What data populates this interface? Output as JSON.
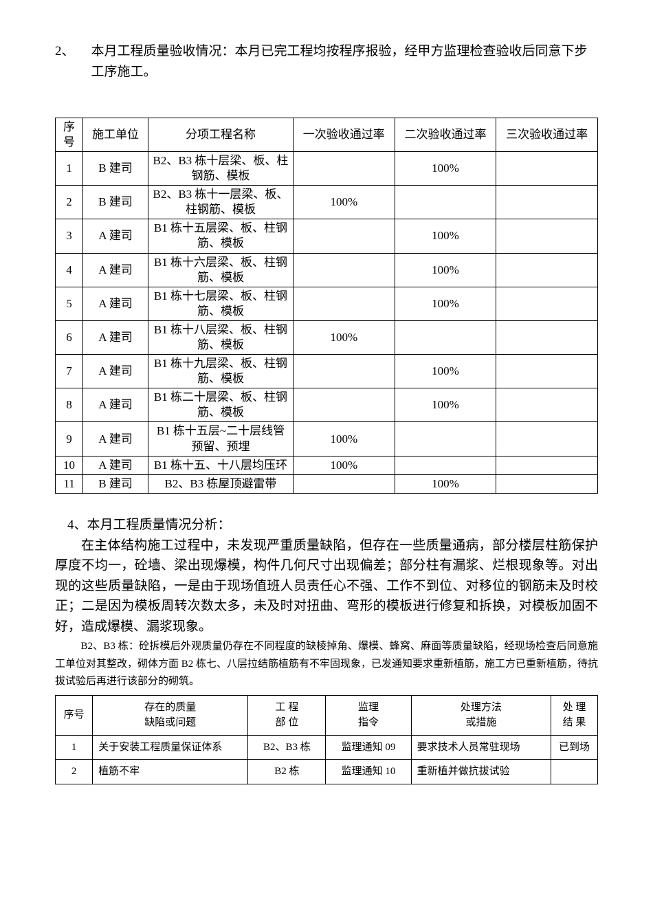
{
  "section2": {
    "number": "2、",
    "text": "本月工程质量验收情况：本月已完工程均按程序报验，经甲方监理检查验收后同意下步工序施工。"
  },
  "mainTable": {
    "headers": {
      "seq": "序号",
      "unit": "施工单位",
      "name": "分项工程名称",
      "pass1": "一次验收通过率",
      "pass2": "二次验收通过率",
      "pass3": "三次验收通过率"
    },
    "rows": [
      {
        "seq": "1",
        "unit": "B 建司",
        "name": "B2、B3 栋十层梁、板、柱钢筋、模板",
        "pass1": "",
        "pass2": "100%",
        "pass3": ""
      },
      {
        "seq": "2",
        "unit": "B 建司",
        "name": "B2、B3 栋十一层梁、板、柱钢筋、模板",
        "pass1": "100%",
        "pass2": "",
        "pass3": ""
      },
      {
        "seq": "3",
        "unit": "A 建司",
        "name": "B1 栋十五层梁、板、柱钢筋、模板",
        "pass1": "",
        "pass2": "100%",
        "pass3": ""
      },
      {
        "seq": "4",
        "unit": "A 建司",
        "name": "B1 栋十六层梁、板、柱钢筋、模板",
        "pass1": "",
        "pass2": "100%",
        "pass3": ""
      },
      {
        "seq": "5",
        "unit": "A 建司",
        "name": "B1 栋十七层梁、板、柱钢筋、模板",
        "pass1": "",
        "pass2": "100%",
        "pass3": ""
      },
      {
        "seq": "6",
        "unit": "A 建司",
        "name": "B1 栋十八层梁、板、柱钢筋、模板",
        "pass1": "100%",
        "pass2": "",
        "pass3": ""
      },
      {
        "seq": "7",
        "unit": "A 建司",
        "name": "B1 栋十九层梁、板、柱钢筋、模板",
        "pass1": "",
        "pass2": "100%",
        "pass3": ""
      },
      {
        "seq": "8",
        "unit": "A 建司",
        "name": "B1 栋二十层梁、板、柱钢筋、模板",
        "pass1": "",
        "pass2": "100%",
        "pass3": ""
      },
      {
        "seq": "9",
        "unit": "A 建司",
        "name": "B1 栋十五层~二十层线管预留、预埋",
        "pass1": "100%",
        "pass2": "",
        "pass3": ""
      },
      {
        "seq": "10",
        "unit": "A 建司",
        "name": "B1 栋十五、十八层均压环",
        "pass1": "100%",
        "pass2": "",
        "pass3": ""
      },
      {
        "seq": "11",
        "unit": "B 建司",
        "name": "B2、B3 栋屋顶避雷带",
        "pass1": "",
        "pass2": "100%",
        "pass3": ""
      }
    ]
  },
  "analysis": {
    "heading": "4、本月工程质量情况分析：",
    "body": "在主体结构施工过程中，未发现严重质量缺陷，但存在一些质量通病，部分楼层柱筋保护厚度不均一，砼墙、梁出现爆模，构件几何尺寸出现偏差；部分柱有漏浆、烂根现象等。对出现的这些质量缺陷，一是由于现场值班人员责任心不强、工作不到位、对移位的钢筋未及时校正；二是因为模板周转次数太多，未及时对扭曲、弯形的模板进行修复和拆换，对模板加固不好，造成爆模、漏浆现象。",
    "sub": "B2、B3 栋：砼拆模后外观质量仍存在不同程度的缺棱掉角、爆模、蜂窝、麻面等质量缺陷，经现场检查后同意施工单位对其整改，砌体方面 B2 栋七、八层拉结筋植筋有不牢固现象，已发通知要求重新植筋，施工方已重新植筋，待抗拔试验后再进行该部分的砌筑。"
  },
  "issueTable": {
    "headers": {
      "seq": "序号",
      "defect": "存在的质量\n缺陷或问题",
      "pos": "工 程\n部 位",
      "order": "监理\n指令",
      "method": "处理方法\n或措施",
      "result": "处 理\n结 果"
    },
    "rows": [
      {
        "seq": "1",
        "defect": "关于安装工程质量保证体系",
        "pos": "B2、B3 栋",
        "order": "监理通知 09",
        "method": "要求技术人员常驻现场",
        "result": "已到场"
      },
      {
        "seq": "2",
        "defect": "植筋不牢",
        "pos": "B2 栋",
        "order": "监理通知 10",
        "method": "重新植并做抗拔试验",
        "result": ""
      }
    ]
  }
}
